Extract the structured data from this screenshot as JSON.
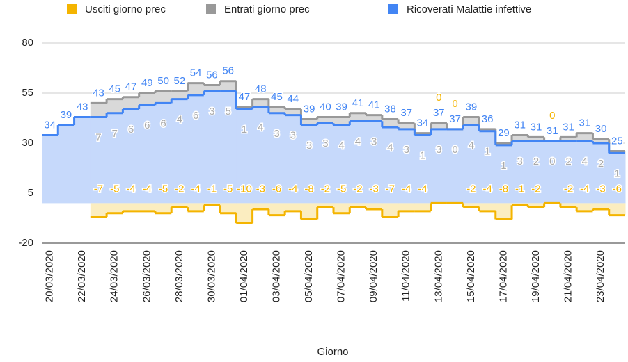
{
  "chart_data": {
    "type": "stepped-area",
    "x_label": "Giorno",
    "categories": [
      "20/03/2020",
      null,
      "22/03/2020",
      null,
      "24/03/2020",
      null,
      "26/03/2020",
      null,
      "28/03/2020",
      null,
      "30/03/2020",
      null,
      "01/04/2020",
      null,
      "03/04/2020",
      null,
      "05/04/2020",
      null,
      "07/04/2020",
      null,
      "09/04/2020",
      null,
      "11/04/2020",
      null,
      "13/04/2020",
      null,
      "15/04/2020",
      null,
      "17/04/2020",
      null,
      "19/04/2020",
      null,
      "21/04/2020",
      null,
      "23/04/2020",
      null
    ],
    "series": [
      {
        "name": "Usciti giorno prec",
        "color": "#f4b400",
        "values": [
          null,
          null,
          null,
          -7,
          -5,
          -4,
          -4,
          -5,
          -2,
          -4,
          -1,
          -5,
          -10,
          -3,
          -6,
          -4,
          -8,
          -2,
          -5,
          -2,
          -3,
          -7,
          -4,
          -4,
          0,
          0,
          -2,
          -4,
          -8,
          -1,
          -2,
          0,
          -2,
          -4,
          -3,
          -6
        ]
      },
      {
        "name": "Entrati giorno prec",
        "color": "#999999",
        "values": [
          null,
          null,
          null,
          7,
          7,
          6,
          6,
          6,
          4,
          6,
          3,
          5,
          1,
          4,
          3,
          3,
          3,
          3,
          4,
          4,
          3,
          4,
          3,
          1,
          3,
          0,
          4,
          1,
          1,
          3,
          2,
          0,
          2,
          4,
          2,
          1
        ]
      },
      {
        "name": "Ricoverati Malattie infettive",
        "color": "#4285f4",
        "values": [
          34,
          39,
          43,
          43,
          45,
          47,
          49,
          50,
          52,
          54,
          56,
          56,
          47,
          48,
          45,
          44,
          39,
          40,
          39,
          41,
          41,
          38,
          37,
          34,
          37,
          37,
          39,
          36,
          29,
          31,
          31,
          31,
          31,
          31,
          30,
          25
        ]
      }
    ],
    "ylim": [
      -20,
      80
    ],
    "yticks": [
      -20,
      5,
      30,
      55,
      80
    ],
    "grid": true,
    "legend": "top"
  }
}
